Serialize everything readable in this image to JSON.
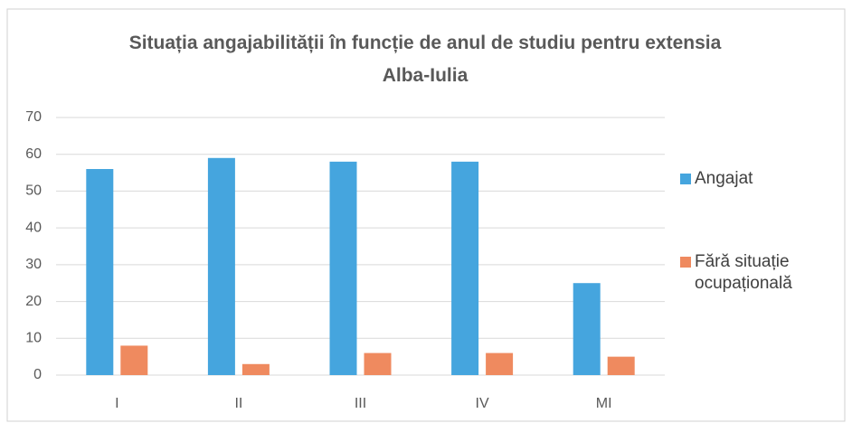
{
  "chart_data": {
    "type": "bar",
    "title": "Situația angajabilității în funcție de anul de studiu pentru extensia Alba-Iulia",
    "categories": [
      "I",
      "II",
      "III",
      "IV",
      "MI"
    ],
    "series": [
      {
        "name": "Angajat",
        "color": "#45a5de",
        "values": [
          56,
          59,
          58,
          58,
          25
        ]
      },
      {
        "name": "Fără situație ocupațională",
        "color": "#ef8a5f",
        "values": [
          8,
          3,
          6,
          6,
          5
        ]
      }
    ],
    "ylim": [
      0,
      70
    ],
    "yticks": [
      0,
      10,
      20,
      30,
      40,
      50,
      60,
      70
    ],
    "grid": true,
    "legend": "right"
  }
}
